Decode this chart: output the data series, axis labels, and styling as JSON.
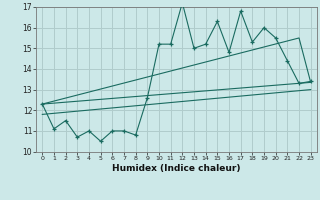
{
  "xlabel": "Humidex (Indice chaleur)",
  "xlim": [
    -0.5,
    23.5
  ],
  "ylim": [
    10,
    17
  ],
  "yticks": [
    10,
    11,
    12,
    13,
    14,
    15,
    16,
    17
  ],
  "xticks": [
    0,
    1,
    2,
    3,
    4,
    5,
    6,
    7,
    8,
    9,
    10,
    11,
    12,
    13,
    14,
    15,
    16,
    17,
    18,
    19,
    20,
    21,
    22,
    23
  ],
  "bg_color": "#cce8e8",
  "line_color": "#1a6b60",
  "grid_color": "#b0cccc",
  "series1_x": [
    0,
    1,
    2,
    3,
    4,
    5,
    6,
    7,
    8,
    9,
    10,
    11,
    12,
    13,
    14,
    15,
    16,
    17,
    18,
    19,
    20,
    21,
    22,
    23
  ],
  "series1_y": [
    12.3,
    11.1,
    11.5,
    10.7,
    11.0,
    10.5,
    11.0,
    11.0,
    10.8,
    12.6,
    15.2,
    15.2,
    17.2,
    15.0,
    15.2,
    16.3,
    14.8,
    16.8,
    15.3,
    16.0,
    15.5,
    14.4,
    13.3,
    13.4
  ],
  "series2_x": [
    0,
    22,
    23
  ],
  "series2_y": [
    12.3,
    15.5,
    13.35
  ],
  "series3_x": [
    0,
    23
  ],
  "series3_y": [
    12.3,
    13.35
  ],
  "series4_x": [
    0,
    23
  ],
  "series4_y": [
    11.8,
    13.0
  ]
}
